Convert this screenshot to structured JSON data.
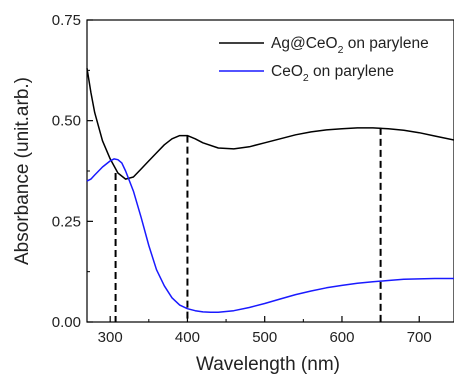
{
  "chart_data": {
    "type": "line",
    "xlabel": "Wavelength (nm)",
    "ylabel": "Absorbance (unit.arb.)",
    "xlim": [
      270,
      745
    ],
    "ylim": [
      0,
      0.75
    ],
    "x_ticks": [
      300,
      400,
      500,
      600,
      700
    ],
    "x_tick_labels": [
      "300",
      "400",
      "500",
      "600",
      "700"
    ],
    "y_ticks": [
      0,
      0.25,
      0.5,
      0.75
    ],
    "y_tick_labels": [
      "0.00",
      "0.25",
      "0.50",
      "0.75"
    ],
    "legend_position": "top-right",
    "series": [
      {
        "name": "Ag@CeO2 on parylene",
        "legend_main": "Ag@CeO",
        "legend_sub": "2",
        "legend_rest": " on parylene",
        "color": "#000000",
        "x": [
          270,
          275,
          280,
          290,
          300,
          310,
          320,
          330,
          340,
          350,
          360,
          370,
          380,
          390,
          400,
          410,
          420,
          440,
          460,
          480,
          500,
          520,
          540,
          560,
          580,
          600,
          620,
          640,
          660,
          680,
          700,
          720,
          745
        ],
        "y": [
          0.63,
          0.57,
          0.52,
          0.45,
          0.405,
          0.37,
          0.355,
          0.36,
          0.38,
          0.4,
          0.42,
          0.44,
          0.455,
          0.463,
          0.463,
          0.455,
          0.445,
          0.432,
          0.43,
          0.435,
          0.445,
          0.455,
          0.465,
          0.472,
          0.477,
          0.48,
          0.482,
          0.482,
          0.48,
          0.476,
          0.47,
          0.462,
          0.452
        ]
      },
      {
        "name": "CeO2 on parylene",
        "legend_main": "CeO",
        "legend_sub": "2",
        "legend_rest": " on parylene",
        "color": "#1a1aff",
        "x": [
          270,
          275,
          280,
          290,
          300,
          305,
          310,
          315,
          320,
          330,
          340,
          350,
          360,
          370,
          380,
          390,
          400,
          410,
          420,
          430,
          440,
          460,
          480,
          500,
          520,
          540,
          560,
          580,
          600,
          620,
          640,
          660,
          680,
          700,
          720,
          745
        ],
        "y": [
          0.35,
          0.355,
          0.365,
          0.385,
          0.4,
          0.405,
          0.403,
          0.395,
          0.375,
          0.325,
          0.26,
          0.19,
          0.13,
          0.09,
          0.06,
          0.042,
          0.033,
          0.028,
          0.025,
          0.024,
          0.024,
          0.028,
          0.036,
          0.046,
          0.057,
          0.068,
          0.077,
          0.085,
          0.091,
          0.096,
          0.1,
          0.103,
          0.106,
          0.107,
          0.108,
          0.108
        ]
      }
    ],
    "reference_lines": [
      {
        "x": 307,
        "y_top": 0.37
      },
      {
        "x": 400,
        "y_top": 0.463
      },
      {
        "x": 650,
        "y_top": 0.482
      }
    ]
  }
}
